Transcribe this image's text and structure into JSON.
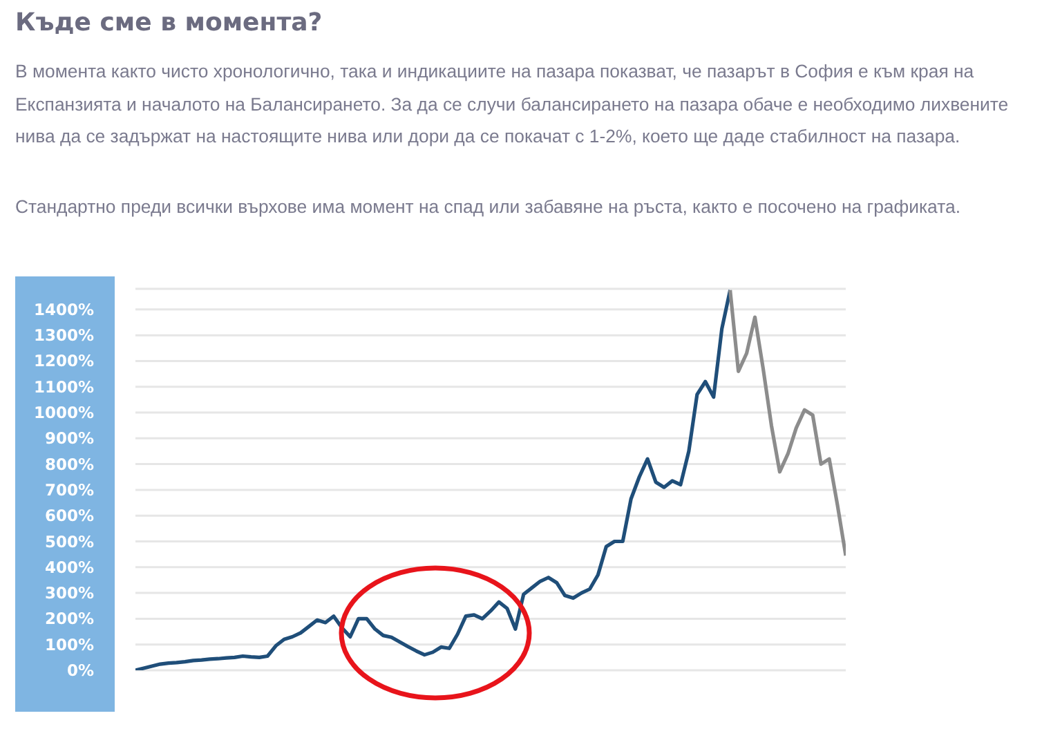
{
  "chart_data": {
    "type": "line",
    "title": "Къде сме в момента?",
    "subtitle": "В момента както чисто хронологично, така и индикациите на пазара показват, че пазарът в София е към края на Експанзията и началото на Балансирането. За да се случи балансирането на пазара обаче е необходимо лихвените нива да се задържат на настоящите нива или дори да се покачат с 1-2%, което ще даде стабилност на пазара.",
    "annotations": [
      "Стандартно преди всички върхове има момент на спад или забавяне на ръста, както е посочено на графиката."
    ],
    "categories": [
      null,
      null,
      null,
      null,
      null,
      null,
      null,
      null,
      null,
      null,
      null,
      null,
      null,
      null,
      null,
      null,
      null,
      null,
      null,
      null,
      null,
      null,
      null,
      null,
      null,
      null,
      null,
      null,
      null,
      null,
      null,
      null,
      null,
      null,
      null,
      null,
      null,
      null,
      null,
      null,
      null,
      null,
      null,
      null,
      null,
      null,
      null,
      null,
      null,
      null,
      null,
      null,
      null,
      null,
      null,
      null,
      null,
      null,
      null,
      null,
      null,
      null,
      null,
      null,
      null,
      null,
      null,
      null,
      null,
      null,
      null,
      null,
      null,
      null,
      null,
      null,
      null,
      null,
      null,
      null,
      null,
      null,
      null,
      null,
      null,
      null,
      null
    ],
    "ylim": [
      0,
      1480
    ],
    "yticks": [
      {
        "value": 0,
        "label": "0%"
      },
      {
        "value": 100,
        "label": "100%"
      },
      {
        "value": 200,
        "label": "200%"
      },
      {
        "value": 300,
        "label": "300%"
      },
      {
        "value": 400,
        "label": "400%"
      },
      {
        "value": 500,
        "label": "500%"
      },
      {
        "value": 600,
        "label": "600%"
      },
      {
        "value": 700,
        "label": "700%"
      },
      {
        "value": 800,
        "label": "800%"
      },
      {
        "value": 900,
        "label": "900%"
      },
      {
        "value": 1000,
        "label": "1000%"
      },
      {
        "value": 1100,
        "label": "1100%"
      },
      {
        "value": 1200,
        "label": "1200%"
      },
      {
        "value": 1300,
        "label": "1300%"
      },
      {
        "value": 1400,
        "label": "1400%"
      }
    ],
    "tick_labels": "y",
    "grid": "y",
    "legend": false,
    "marker": "none",
    "line_style": "solid",
    "series": [
      {
        "color": "#1f4e79",
        "values": [
          0,
          8,
          16,
          24,
          28,
          30,
          33,
          38,
          40,
          43,
          45,
          48,
          50,
          55,
          52,
          50,
          55,
          95,
          120,
          130,
          145,
          170,
          195,
          185,
          210,
          165,
          130,
          200,
          200,
          160,
          135,
          128,
          110,
          92,
          75,
          60,
          70,
          90,
          85,
          140,
          210,
          215,
          200,
          230,
          265,
          240,
          160,
          295,
          320,
          345,
          360,
          340,
          290,
          280,
          300,
          315,
          370,
          480,
          500,
          500,
          665,
          750,
          820,
          730,
          710,
          735,
          720,
          850,
          1070,
          1120,
          1060,
          1325,
          1475,
          null,
          null,
          null,
          null,
          null,
          null,
          null,
          null,
          null,
          null,
          null,
          null,
          null,
          null
        ]
      },
      {
        "color": "#8c8c8c",
        "values": [
          null,
          null,
          null,
          null,
          null,
          null,
          null,
          null,
          null,
          null,
          null,
          null,
          null,
          null,
          null,
          null,
          null,
          null,
          null,
          null,
          null,
          null,
          null,
          null,
          null,
          null,
          null,
          null,
          null,
          null,
          null,
          null,
          null,
          null,
          null,
          null,
          null,
          null,
          null,
          null,
          null,
          null,
          null,
          null,
          null,
          null,
          null,
          null,
          null,
          null,
          null,
          null,
          null,
          null,
          null,
          null,
          null,
          null,
          null,
          null,
          null,
          null,
          null,
          null,
          null,
          null,
          null,
          null,
          null,
          null,
          null,
          null,
          1475,
          1160,
          1230,
          1370,
          1170,
          950,
          770,
          840,
          940,
          1010,
          990,
          800,
          820,
          640,
          445
        ]
      }
    ]
  }
}
